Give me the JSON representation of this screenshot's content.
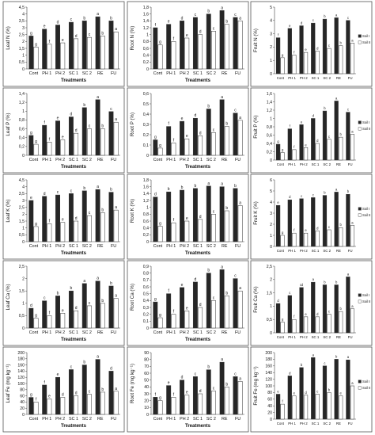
{
  "colors": {
    "series_dark": "#262626",
    "series_light": "#ffffff",
    "bar_stroke": "#333333"
  },
  "chart_data": [
    {
      "type": "bar",
      "row": 0,
      "col": 0,
      "ylabel": "Leaf N (%)",
      "xlabel": "Treatments",
      "ylim": [
        0,
        4.5
      ],
      "yticks": [
        0,
        0.5,
        1,
        1.5,
        2,
        2.5,
        3,
        3.5,
        4,
        4.5
      ],
      "ytick_labels": [
        "0",
        "0,5",
        "1",
        "1,5",
        "2",
        "2,5",
        "3",
        "3,5",
        "4",
        "4,5"
      ],
      "categories": [
        "Cont",
        "PH 1",
        "PH 2",
        "SC 1",
        "SC 2",
        "RE",
        "FU"
      ],
      "legend": [],
      "series": [
        {
          "values": [
            2.4,
            2.9,
            3.2,
            3.4,
            3.5,
            3.8,
            3.5
          ],
          "letters": [
            "g",
            "e",
            "d",
            "c",
            "b",
            "a",
            "b"
          ]
        },
        {
          "values": [
            1.6,
            1.8,
            1.9,
            2.2,
            2.3,
            2.4,
            2.7
          ],
          "letters": [
            "g",
            "f",
            "e",
            "d",
            "c",
            "b",
            "a"
          ]
        }
      ]
    },
    {
      "type": "bar",
      "row": 0,
      "col": 1,
      "ylabel": "Root N (%)",
      "xlabel": "Treatments",
      "ylim": [
        0,
        1.8
      ],
      "yticks": [
        0,
        0.2,
        0.4,
        0.6,
        0.8,
        1,
        1.2,
        1.4,
        1.6,
        1.8
      ],
      "ytick_labels": [
        "0",
        "0,2",
        "0,4",
        "0,6",
        "0,8",
        "1",
        "1,2",
        "1,4",
        "1,6",
        "1,8"
      ],
      "categories": [
        "Cont",
        "PH 1",
        "PH 2",
        "SC 1",
        "SC 2",
        "RE",
        "FU"
      ],
      "legend": [],
      "series": [
        {
          "values": [
            1.2,
            1.3,
            1.4,
            1.5,
            1.6,
            1.7,
            1.5
          ],
          "letters": [
            "f",
            "e",
            "d",
            "c",
            "b",
            "a",
            "c"
          ]
        },
        {
          "values": [
            0.7,
            0.8,
            0.9,
            1.0,
            1.1,
            1.3,
            1.4
          ],
          "letters": [
            "g",
            "f",
            "e",
            "d",
            "c",
            "b",
            "a"
          ]
        }
      ]
    },
    {
      "type": "bar",
      "row": 0,
      "col": 2,
      "ylabel": "Fruit N (%)",
      "xlabel": "",
      "ylim": [
        0,
        5
      ],
      "yticks": [
        0,
        1,
        2,
        3,
        4,
        5
      ],
      "ytick_labels": [
        "0",
        "1",
        "2",
        "3",
        "4",
        "5"
      ],
      "categories": [
        "Cont",
        "PH 1",
        "PH 2",
        "SC 1",
        "SC 2",
        "RE",
        "FU"
      ],
      "legend": [
        "Soil I",
        "Soil II"
      ],
      "series": [
        {
          "values": [
            2.7,
            3.4,
            3.6,
            3.8,
            4.1,
            4.2,
            4.0
          ],
          "letters": [
            "f",
            "e",
            "d",
            "c",
            "b",
            "a",
            "c"
          ]
        },
        {
          "values": [
            1.2,
            1.4,
            1.6,
            1.7,
            1.9,
            2.1,
            2.3
          ],
          "letters": [
            "g",
            "f",
            "e",
            "d",
            "c",
            "b",
            "a"
          ]
        }
      ]
    },
    {
      "type": "bar",
      "row": 1,
      "col": 0,
      "ylabel": "Leaf P (%)",
      "xlabel": "Treatments",
      "ylim": [
        0,
        1.4
      ],
      "yticks": [
        0,
        0.2,
        0.4,
        0.6,
        0.8,
        1,
        1.2,
        1.4
      ],
      "ytick_labels": [
        "0",
        "0,2",
        "0,4",
        "0,6",
        "0,8",
        "1",
        "1,2",
        "1,4"
      ],
      "categories": [
        "Cont",
        "PH 1",
        "PH 2",
        "SC 1",
        "SC 2",
        "RE",
        "FU"
      ],
      "legend": [],
      "series": [
        {
          "values": [
            0.45,
            0.68,
            0.78,
            0.87,
            1.08,
            1.26,
            0.99
          ],
          "letters": [
            "g",
            "f",
            "e",
            "d",
            "b",
            "a",
            "c"
          ]
        },
        {
          "values": [
            0.25,
            0.3,
            0.35,
            0.5,
            0.6,
            0.6,
            0.75
          ],
          "letters": [
            "g",
            "f",
            "e",
            "d",
            "c",
            "b",
            "a"
          ]
        }
      ]
    },
    {
      "type": "bar",
      "row": 1,
      "col": 1,
      "ylabel": "Root P (%)",
      "xlabel": "Treatments",
      "ylim": [
        0,
        0.6
      ],
      "yticks": [
        0,
        0.1,
        0.2,
        0.3,
        0.4,
        0.5,
        0.6
      ],
      "ytick_labels": [
        "0",
        "0,1",
        "0,2",
        "0,3",
        "0,4",
        "0,5",
        "0,6"
      ],
      "categories": [
        "Cont",
        "PH 1",
        "PH 2",
        "SC 1",
        "SC 2",
        "RE",
        "FU"
      ],
      "legend": [],
      "series": [
        {
          "values": [
            0.15,
            0.28,
            0.33,
            0.36,
            0.45,
            0.54,
            0.41
          ],
          "letters": [
            "g",
            "f",
            "e",
            "d",
            "b",
            "a",
            "c"
          ]
        },
        {
          "values": [
            0.07,
            0.12,
            0.16,
            0.19,
            0.22,
            0.28,
            0.34
          ],
          "letters": [
            "g",
            "f",
            "e",
            "d",
            "c",
            "b",
            "a"
          ]
        }
      ]
    },
    {
      "type": "bar",
      "row": 1,
      "col": 2,
      "ylabel": "Fruit P (%)",
      "xlabel": "",
      "ylim": [
        0,
        1.6
      ],
      "yticks": [
        0,
        0.2,
        0.4,
        0.6,
        0.8,
        1,
        1.2,
        1.4,
        1.6
      ],
      "ytick_labels": [
        "0",
        "0,2",
        "0,4",
        "0,6",
        "0,8",
        "1",
        "1,2",
        "1,4",
        "1,6"
      ],
      "categories": [
        "Cont",
        "PH 1",
        "PH 2",
        "SC 1",
        "SC 2",
        "RE",
        "FU"
      ],
      "legend": [
        "Soil I",
        "Soil II"
      ],
      "series": [
        {
          "values": [
            0.38,
            0.75,
            0.85,
            1.0,
            1.18,
            1.42,
            1.15
          ],
          "letters": [
            "g",
            "f",
            "e",
            "d",
            "b",
            "a",
            "c"
          ]
        },
        {
          "values": [
            0.18,
            0.25,
            0.3,
            0.4,
            0.5,
            0.55,
            0.62
          ],
          "letters": [
            "g",
            "f",
            "e",
            "d",
            "c",
            "b",
            "a"
          ]
        }
      ]
    },
    {
      "type": "bar",
      "row": 2,
      "col": 0,
      "ylabel": "Leaf K (%)",
      "xlabel": "Treatments",
      "ylim": [
        0,
        4.5
      ],
      "yticks": [
        0,
        0.5,
        1,
        1.5,
        2,
        2.5,
        3,
        3.5,
        4,
        4.5
      ],
      "ytick_labels": [
        "0",
        "0,5",
        "1",
        "1,5",
        "2",
        "2,5",
        "3",
        "3,5",
        "4",
        "4,5"
      ],
      "categories": [
        "Cont",
        "PH 1",
        "PH 2",
        "SC 1",
        "SC 2",
        "RE",
        "FU"
      ],
      "legend": [],
      "series": [
        {
          "values": [
            3.0,
            3.3,
            3.4,
            3.5,
            3.7,
            3.8,
            3.6
          ],
          "letters": [
            "e",
            "d",
            "c",
            "c",
            "b",
            "a",
            "b"
          ]
        },
        {
          "values": [
            1.1,
            1.3,
            1.4,
            1.5,
            1.9,
            2.1,
            2.3
          ],
          "letters": [
            "g",
            "f",
            "e",
            "d",
            "c",
            "b",
            "a"
          ]
        }
      ]
    },
    {
      "type": "bar",
      "row": 2,
      "col": 1,
      "ylabel": "Root K (%)",
      "xlabel": "Treatments",
      "ylim": [
        0,
        1.8
      ],
      "yticks": [
        0,
        0.2,
        0.4,
        0.6,
        0.8,
        1,
        1.2,
        1.4,
        1.6,
        1.8
      ],
      "ytick_labels": [
        "0",
        "0,2",
        "0,4",
        "0,6",
        "0,8",
        "1",
        "1,2",
        "1,4",
        "1,6",
        "1,8"
      ],
      "categories": [
        "Cont",
        "PH 1",
        "PH 2",
        "SC 1",
        "SC 2",
        "RE",
        "FU"
      ],
      "legend": [],
      "series": [
        {
          "values": [
            1.3,
            1.45,
            1.5,
            1.55,
            1.62,
            1.6,
            1.55
          ],
          "letters": [
            "d",
            "b",
            "b",
            "b",
            "a",
            "a",
            "b"
          ]
        },
        {
          "values": [
            0.45,
            0.55,
            0.6,
            0.65,
            0.8,
            0.9,
            1.05
          ],
          "letters": [
            "g",
            "f",
            "e",
            "d",
            "c",
            "b",
            "a"
          ]
        }
      ]
    },
    {
      "type": "bar",
      "row": 2,
      "col": 2,
      "ylabel": "Fruit K (%)",
      "xlabel": "",
      "ylim": [
        0,
        6
      ],
      "yticks": [
        0,
        1,
        2,
        3,
        4,
        5,
        6
      ],
      "ytick_labels": [
        "0",
        "1",
        "2",
        "3",
        "4",
        "5",
        "6"
      ],
      "categories": [
        "Cont",
        "PH 1",
        "PH 2",
        "SC 1",
        "SC 2",
        "RE",
        "FU"
      ],
      "legend": [
        "Soil I",
        "Soil II"
      ],
      "series": [
        {
          "values": [
            3.7,
            4.2,
            4.3,
            4.4,
            4.6,
            4.9,
            4.7
          ],
          "letters": [
            "e",
            "d",
            "c",
            "c",
            "b",
            "a",
            "b"
          ]
        },
        {
          "values": [
            1.0,
            1.2,
            1.2,
            1.4,
            1.5,
            1.7,
            1.9
          ],
          "letters": [
            "g",
            "f",
            "e",
            "d",
            "c",
            "b",
            "a"
          ]
        }
      ]
    },
    {
      "type": "bar",
      "row": 3,
      "col": 0,
      "ylabel": "Leaf Ca (%)",
      "xlabel": "Treatments",
      "ylim": [
        0,
        2.5
      ],
      "yticks": [
        0,
        0.5,
        1,
        1.5,
        2,
        2.5
      ],
      "ytick_labels": [
        "0",
        "0,5",
        "1",
        "1,5",
        "2",
        "2,5"
      ],
      "categories": [
        "Cont",
        "PH 1",
        "PH 2",
        "SC 1",
        "SC 2",
        "RE",
        "FU"
      ],
      "legend": [],
      "series": [
        {
          "values": [
            0.8,
            1.1,
            1.3,
            1.5,
            1.8,
            1.9,
            1.7
          ],
          "letters": [
            "d",
            "c",
            "b",
            "b",
            "a",
            "a",
            "b"
          ]
        },
        {
          "values": [
            0.4,
            0.5,
            0.6,
            0.7,
            0.9,
            1.0,
            1.2
          ],
          "letters": [
            "g",
            "f",
            "e",
            "d",
            "c",
            "b",
            "a"
          ]
        }
      ]
    },
    {
      "type": "bar",
      "row": 3,
      "col": 1,
      "ylabel": "Root Ca (%)",
      "xlabel": "Treatments",
      "ylim": [
        0,
        0.9
      ],
      "yticks": [
        0,
        0.1,
        0.2,
        0.3,
        0.4,
        0.5,
        0.6,
        0.7,
        0.8,
        0.9
      ],
      "ytick_labels": [
        "0",
        "0,1",
        "0,2",
        "0,3",
        "0,4",
        "0,5",
        "0,6",
        "0,7",
        "0,8",
        "0,9"
      ],
      "categories": [
        "Cont",
        "PH 1",
        "PH 2",
        "SC 1",
        "SC 2",
        "RE",
        "FU"
      ],
      "legend": [],
      "series": [
        {
          "values": [
            0.38,
            0.5,
            0.59,
            0.67,
            0.8,
            0.85,
            0.72
          ],
          "letters": [
            "g",
            "f",
            "e",
            "d",
            "b",
            "a",
            "c"
          ]
        },
        {
          "values": [
            0.15,
            0.2,
            0.25,
            0.3,
            0.4,
            0.47,
            0.54
          ],
          "letters": [
            "g",
            "f",
            "e",
            "d",
            "c",
            "b",
            "a"
          ]
        }
      ]
    },
    {
      "type": "bar",
      "row": 3,
      "col": 2,
      "ylabel": "Fruit Ca (%)",
      "xlabel": "",
      "ylim": [
        0,
        2.5
      ],
      "yticks": [
        0,
        0.5,
        1,
        1.5,
        2,
        2.5
      ],
      "ytick_labels": [
        "0",
        "0,5",
        "1",
        "1,5",
        "2",
        "2,5"
      ],
      "categories": [
        "Cont",
        "PH 1",
        "PH 2",
        "SC 1",
        "SC 2",
        "RE",
        "FU"
      ],
      "legend": [
        "Soil I",
        "Soil II"
      ],
      "series": [
        {
          "values": [
            1.1,
            1.4,
            1.7,
            1.9,
            1.8,
            1.8,
            2.1
          ],
          "letters": [
            "d",
            "c",
            "cd",
            "a",
            "b",
            "b",
            "a"
          ]
        },
        {
          "values": [
            0.4,
            0.5,
            0.6,
            0.6,
            0.7,
            0.8,
            0.9
          ],
          "letters": [
            "g",
            "f",
            "e",
            "d",
            "c",
            "b",
            "a"
          ]
        }
      ]
    },
    {
      "type": "bar",
      "row": 4,
      "col": 0,
      "ylabel": "Leaf Fe (mg kg⁻¹)",
      "xlabel": "Treatments",
      "ylim": [
        0,
        200
      ],
      "yticks": [
        0,
        20,
        40,
        60,
        80,
        100,
        120,
        140,
        160,
        180,
        200
      ],
      "ytick_labels": [
        "0",
        "20",
        "40",
        "60",
        "80",
        "100",
        "120",
        "140",
        "160",
        "180",
        "200"
      ],
      "categories": [
        "Cont",
        "PH 1",
        "PH 2",
        "SC 1",
        "SC 2",
        "RE",
        "FU"
      ],
      "legend": [],
      "series": [
        {
          "values": [
            55,
            95,
            120,
            145,
            160,
            178,
            140
          ],
          "letters": [
            "g",
            "f",
            "e",
            "c",
            "b",
            "a",
            "d"
          ]
        },
        {
          "values": [
            40,
            50,
            55,
            60,
            65,
            72,
            75
          ],
          "letters": [
            "f",
            "e",
            "d",
            "d",
            "c",
            "b",
            "a"
          ]
        }
      ]
    },
    {
      "type": "bar",
      "row": 4,
      "col": 1,
      "ylabel": "Root Fe (mg kg⁻¹)",
      "xlabel": "Treatments",
      "ylim": [
        0,
        90
      ],
      "yticks": [
        0,
        10,
        20,
        30,
        40,
        50,
        60,
        70,
        80,
        90
      ],
      "ytick_labels": [
        "0",
        "10",
        "20",
        "30",
        "40",
        "50",
        "60",
        "70",
        "80",
        "90"
      ],
      "categories": [
        "Cont",
        "PH 1",
        "PH 2",
        "SC 1",
        "SC 2",
        "RE",
        "FU"
      ],
      "legend": [],
      "series": [
        {
          "values": [
            25,
            42,
            50,
            55,
            65,
            76,
            55
          ],
          "letters": [
            "f",
            "e",
            "d",
            "c",
            "b",
            "a",
            "c"
          ]
        },
        {
          "values": [
            20,
            25,
            28,
            30,
            34,
            40,
            48
          ],
          "letters": [
            "g",
            "f",
            "e",
            "d",
            "c",
            "b",
            "a"
          ]
        }
      ]
    },
    {
      "type": "bar",
      "row": 4,
      "col": 2,
      "ylabel": "Fruit Fe (mg kg⁻¹)",
      "xlabel": "",
      "ylim": [
        0,
        200
      ],
      "yticks": [
        0,
        20,
        40,
        60,
        80,
        100,
        120,
        140,
        160,
        180,
        200
      ],
      "ytick_labels": [
        "0",
        "20",
        "40",
        "60",
        "80",
        "100",
        "120",
        "140",
        "160",
        "180",
        "200"
      ],
      "categories": [
        "Cont",
        "PH 1",
        "PH 2",
        "SC 1",
        "SC 2",
        "RE",
        "FU"
      ],
      "legend": [
        "Soil I",
        "Soil II"
      ],
      "series": [
        {
          "values": [
            75,
            130,
            155,
            185,
            160,
            180,
            178
          ],
          "letters": [
            "e",
            "d",
            "b",
            "a",
            "c",
            "b",
            "a"
          ]
        },
        {
          "values": [
            45,
            70,
            72,
            75,
            80,
            70,
            100
          ],
          "letters": [
            "f",
            "e",
            "d",
            "c",
            "b",
            "e",
            "a"
          ]
        }
      ]
    }
  ]
}
